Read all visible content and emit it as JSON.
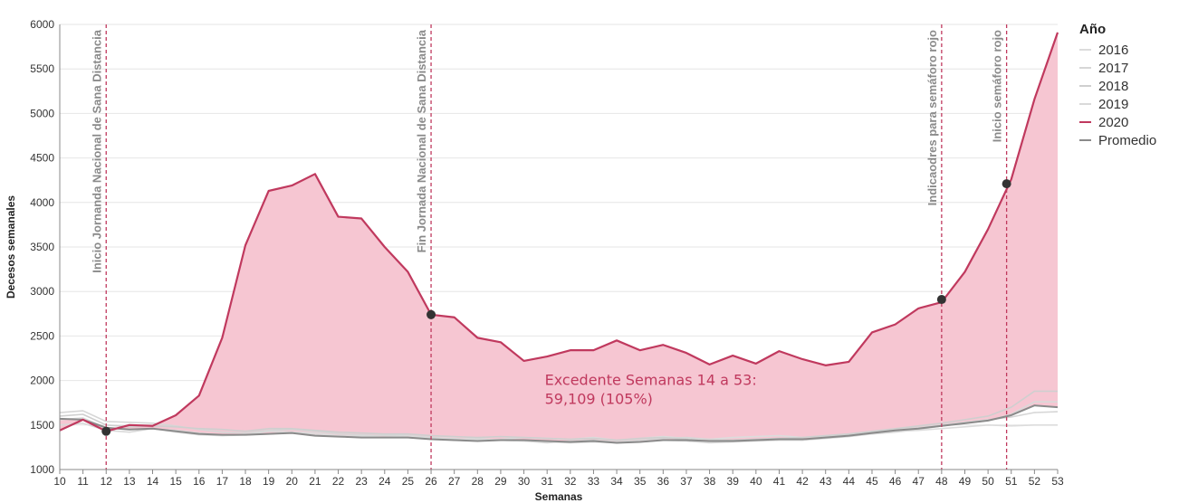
{
  "chart_data": {
    "type": "line",
    "xlabel": "Semanas",
    "ylabel": "Decesos semanales",
    "ylim": [
      1000,
      6000
    ],
    "yticks": [
      1000,
      1500,
      2000,
      2500,
      3000,
      3500,
      4000,
      4500,
      5000,
      5500,
      6000
    ],
    "x": [
      10,
      11,
      12,
      13,
      14,
      15,
      16,
      17,
      18,
      19,
      20,
      21,
      22,
      23,
      24,
      25,
      26,
      27,
      28,
      29,
      30,
      31,
      32,
      33,
      34,
      35,
      36,
      37,
      38,
      39,
      40,
      41,
      42,
      43,
      44,
      45,
      46,
      47,
      48,
      49,
      50,
      51,
      52,
      53
    ],
    "series": [
      {
        "name": "2016",
        "color": "#dcdcdc",
        "values": [
          1560,
          1580,
          1470,
          1450,
          1460,
          1420,
          1390,
          1380,
          1390,
          1400,
          1420,
          1410,
          1380,
          1370,
          1390,
          1380,
          1360,
          1350,
          1330,
          1340,
          1360,
          1350,
          1340,
          1360,
          1330,
          1350,
          1370,
          1350,
          1340,
          1360,
          1370,
          1380,
          1360,
          1380,
          1400,
          1410,
          1430,
          1440,
          1460,
          1480,
          1500,
          1490,
          1500,
          1500
        ]
      },
      {
        "name": "2017",
        "color": "#d6d6d6",
        "values": [
          1640,
          1660,
          1540,
          1530,
          1520,
          1490,
          1450,
          1420,
          1410,
          1440,
          1450,
          1430,
          1400,
          1390,
          1380,
          1380,
          1360,
          1340,
          1350,
          1330,
          1320,
          1300,
          1320,
          1330,
          1310,
          1330,
          1350,
          1360,
          1340,
          1330,
          1340,
          1350,
          1330,
          1370,
          1390,
          1420,
          1450,
          1470,
          1500,
          1530,
          1560,
          1590,
          1640,
          1650
        ]
      },
      {
        "name": "2018",
        "color": "#cfcfcf",
        "values": [
          1600,
          1620,
          1500,
          1480,
          1490,
          1480,
          1460,
          1450,
          1430,
          1460,
          1460,
          1440,
          1420,
          1410,
          1400,
          1400,
          1380,
          1370,
          1360,
          1370,
          1360,
          1350,
          1340,
          1350,
          1330,
          1350,
          1360,
          1340,
          1320,
          1330,
          1340,
          1350,
          1360,
          1380,
          1400,
          1430,
          1460,
          1490,
          1520,
          1560,
          1600,
          1700,
          1880,
          1880
        ]
      },
      {
        "name": "2019",
        "color": "#d9d9d9",
        "values": [
          1500,
          1520,
          1440,
          1420,
          1460,
          1440,
          1410,
          1390,
          1390,
          1430,
          1420,
          1390,
          1370,
          1380,
          1360,
          1380,
          1350,
          1340,
          1340,
          1330,
          1320,
          1310,
          1300,
          1310,
          1300,
          1310,
          1330,
          1320,
          1300,
          1310,
          1320,
          1330,
          1330,
          1350,
          1370,
          1400,
          1420,
          1450,
          1490,
          1520,
          1550,
          1620,
          1760,
          1760
        ]
      },
      {
        "name": "2020",
        "color": "#c0395e",
        "values": [
          1440,
          1560,
          1430,
          1500,
          1490,
          1610,
          1830,
          2480,
          3520,
          4130,
          4190,
          4320,
          3840,
          3820,
          3500,
          3220,
          2740,
          2710,
          2480,
          2430,
          2220,
          2270,
          2340,
          2340,
          2450,
          2340,
          2400,
          2310,
          2180,
          2280,
          2190,
          2330,
          2240,
          2170,
          2210,
          2540,
          2630,
          2810,
          2880,
          3220,
          3700,
          4260,
          5160,
          5910
        ]
      },
      {
        "name": "Promedio",
        "color": "#8a8a8a",
        "values": [
          1570,
          1560,
          1470,
          1450,
          1460,
          1430,
          1400,
          1390,
          1390,
          1400,
          1410,
          1380,
          1370,
          1360,
          1360,
          1360,
          1340,
          1330,
          1320,
          1330,
          1330,
          1320,
          1310,
          1320,
          1300,
          1310,
          1330,
          1330,
          1320,
          1320,
          1330,
          1340,
          1340,
          1360,
          1380,
          1410,
          1440,
          1460,
          1490,
          1520,
          1550,
          1610,
          1720,
          1700
        ]
      }
    ],
    "markers": [
      {
        "x": 12,
        "y": 1430
      },
      {
        "x": 26,
        "y": 2740
      },
      {
        "x": 48,
        "y": 2910
      },
      {
        "x": 50.8,
        "y": 4210
      }
    ],
    "vlines": [
      {
        "x": 12,
        "label": "Inicio Jornanda Nacional de Sana Distancia"
      },
      {
        "x": 26,
        "label": "Fin Jornada Nacional de Sana Distancia"
      },
      {
        "x": 48,
        "label": "Indicaodres para semáforo rojo"
      },
      {
        "x": 50.8,
        "label": "Inicio semáforo rojo"
      }
    ],
    "annotation": {
      "line1": "Excedente Semanas 14 a 53:",
      "line2": "59,109 (105%)",
      "x": 30.9,
      "y": 1950
    },
    "fill_color": "#f6c6d2",
    "accent": "#c0395e",
    "vline_color": "#c0395e",
    "legend_title": "Año"
  }
}
